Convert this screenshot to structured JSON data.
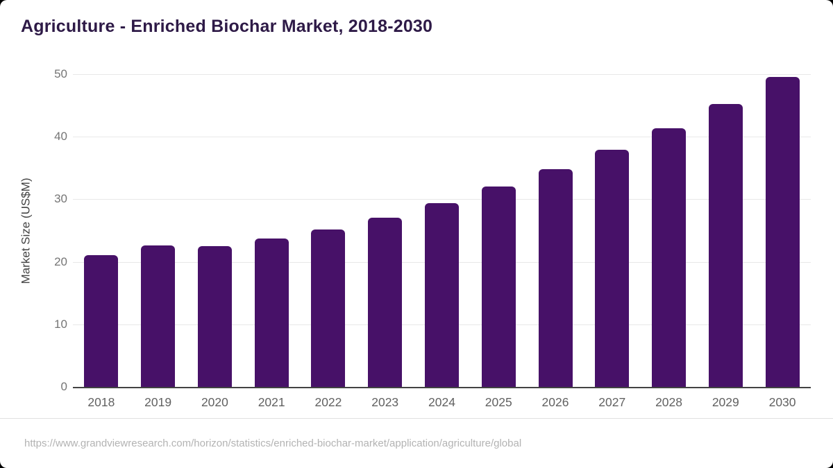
{
  "header": {
    "title": "Agriculture - Enriched Biochar Market, 2018-2030",
    "title_color": "#2e1a47"
  },
  "chart_data": {
    "type": "bar",
    "title": "Agriculture - Enriched Biochar Market, 2018-2030",
    "categories": [
      "2018",
      "2019",
      "2020",
      "2021",
      "2022",
      "2023",
      "2024",
      "2025",
      "2026",
      "2027",
      "2028",
      "2029",
      "2030"
    ],
    "values": [
      21.1,
      22.6,
      22.5,
      23.7,
      25.2,
      27.1,
      29.4,
      32.0,
      34.8,
      37.9,
      41.3,
      45.2,
      49.6
    ],
    "xlabel": "",
    "ylabel": "Market Size (US$M)",
    "ylim": [
      0,
      50
    ],
    "yticks": [
      0,
      10,
      20,
      30,
      40,
      50
    ],
    "grid": true,
    "legend_position": "none",
    "bar_color": "#471168",
    "axis_color": "#424242",
    "gridline_color": "#e8e8e8",
    "tick_label_color": "#757575",
    "x_label_color": "#616161"
  },
  "footer": {
    "source_url": "https://www.grandviewresearch.com/horizon/statistics/enriched-biochar-market/application/agriculture/global"
  }
}
